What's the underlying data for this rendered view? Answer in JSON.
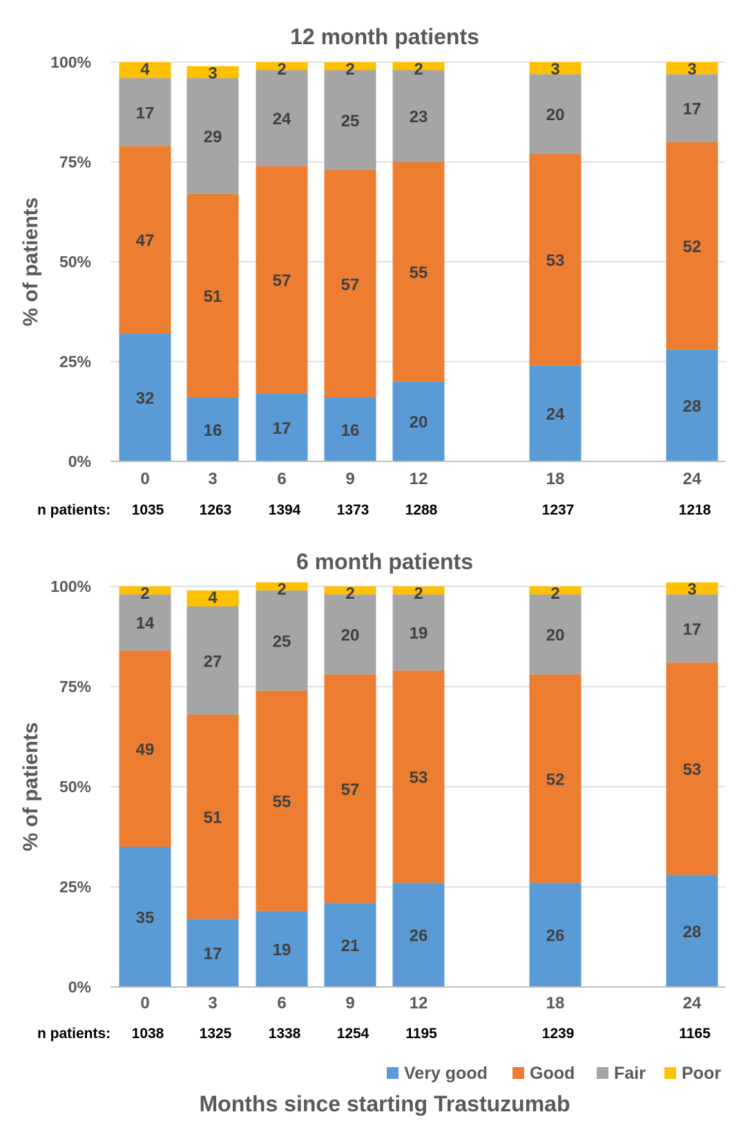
{
  "n_label": "n patients:",
  "xlabel": "Months since starting Trastuzumab",
  "colors": {
    "Very good": "#5B9BD5",
    "Good": "#ED7D31",
    "Fair": "#A5A5A5",
    "Poor": "#FFC000"
  },
  "chart_data": [
    {
      "type": "bar",
      "stacked": true,
      "title": "12 month patients",
      "ylabel": "% of patients",
      "ylim": [
        0,
        100
      ],
      "yticks": [
        "0%",
        "25%",
        "50%",
        "75%",
        "100%"
      ],
      "categories": [
        "0",
        "3",
        "6",
        "9",
        "12",
        "18",
        "24"
      ],
      "x": [
        0,
        3,
        6,
        9,
        12,
        18,
        24
      ],
      "n_patients": [
        "1035",
        "1263",
        "1394",
        "1373",
        "1288",
        "1237",
        "1218"
      ],
      "series": [
        {
          "name": "Very good",
          "values": [
            32,
            16,
            17,
            16,
            20,
            24,
            28
          ]
        },
        {
          "name": "Good",
          "values": [
            47,
            51,
            57,
            57,
            55,
            53,
            52
          ]
        },
        {
          "name": "Fair",
          "values": [
            17,
            29,
            24,
            25,
            23,
            20,
            17
          ]
        },
        {
          "name": "Poor",
          "values": [
            4,
            3,
            2,
            2,
            2,
            3,
            3
          ]
        }
      ],
      "grid": true
    },
    {
      "type": "bar",
      "stacked": true,
      "title": "6 month patients",
      "ylabel": "% of patients",
      "ylim": [
        0,
        100
      ],
      "yticks": [
        "0%",
        "25%",
        "50%",
        "75%",
        "100%"
      ],
      "categories": [
        "0",
        "3",
        "6",
        "9",
        "12",
        "18",
        "24"
      ],
      "x": [
        0,
        3,
        6,
        9,
        12,
        18,
        24
      ],
      "n_patients": [
        "1038",
        "1325",
        "1338",
        "1254",
        "1195",
        "1239",
        "1165"
      ],
      "series": [
        {
          "name": "Very good",
          "values": [
            35,
            17,
            19,
            21,
            26,
            26,
            28
          ]
        },
        {
          "name": "Good",
          "values": [
            49,
            51,
            55,
            57,
            53,
            52,
            53
          ]
        },
        {
          "name": "Fair",
          "values": [
            14,
            27,
            25,
            20,
            19,
            20,
            17
          ]
        },
        {
          "name": "Poor",
          "values": [
            2,
            4,
            2,
            2,
            2,
            2,
            3
          ]
        }
      ],
      "grid": true
    }
  ],
  "legend": {
    "position": "bottom-right",
    "items": [
      "Very good",
      "Good",
      "Fair",
      "Poor"
    ]
  }
}
